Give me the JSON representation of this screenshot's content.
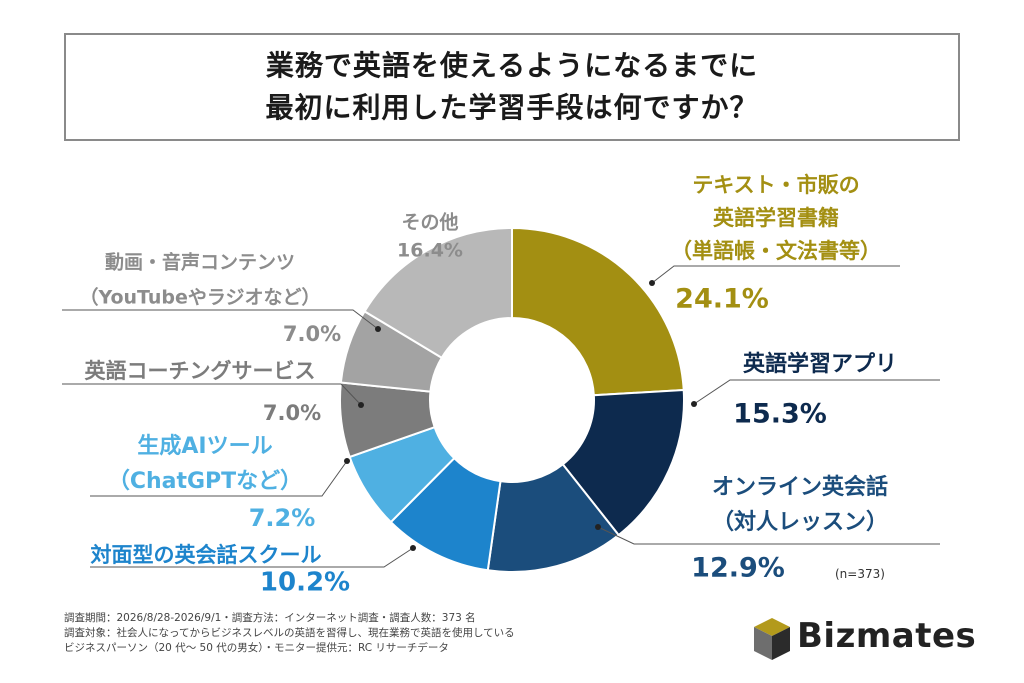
{
  "title": {
    "line1": "業務で英語を使えるようになるまでに",
    "line2": "最初に利用した学習手段は何ですか？"
  },
  "n_label": "(n=373)",
  "footnote": {
    "line1": "調査期間：2026/8/28-2026/9/1・調査方法：インターネット調査・調査人数：373 名",
    "line2": "調査対象：社会人になってからビジネスレベルの英語を習得し、現在業務で英語を使用している",
    "line3": "ビジネスパーソン（20 代〜 50 代の男女）・モニター提供元：RC リサーチデータ"
  },
  "logo": {
    "text": "Bizmates"
  },
  "chart_data": {
    "type": "pie",
    "donut": true,
    "slices": [
      {
        "label_lines": [
          "テキスト・市販の",
          "英語学習書籍",
          "（単語帳・文法書等）"
        ],
        "value": 24.1,
        "value_label": "24.1%",
        "color": "#a38f12"
      },
      {
        "label_lines": [
          "英語学習アプリ"
        ],
        "value": 15.3,
        "value_label": "15.3%",
        "color": "#0d2a4e"
      },
      {
        "label_lines": [
          "オンライン英会話",
          "（対人レッスン）"
        ],
        "value": 12.9,
        "value_label": "12.9%",
        "color": "#1b4d7c"
      },
      {
        "label_lines": [
          "対面型の英会話スクール"
        ],
        "value": 10.2,
        "value_label": "10.2%",
        "color": "#1d84cc"
      },
      {
        "label_lines": [
          "生成AIツール",
          "（ChatGPTなど）"
        ],
        "value": 7.2,
        "value_label": "7.2%",
        "color": "#4fb0e2"
      },
      {
        "label_lines": [
          "英語コーチングサービス"
        ],
        "value": 7.0,
        "value_label": "7.0%",
        "color": "#7c7c7c"
      },
      {
        "label_lines": [
          "動画・音声コンテンツ",
          "（YouTubeやラジオなど）"
        ],
        "value": 7.0,
        "value_label": "7.0%",
        "color": "#a3a3a3"
      },
      {
        "label_lines": [
          "その他"
        ],
        "value": 16.4,
        "value_label": "16.4%",
        "color": "#b8b8b8"
      }
    ],
    "label_colors": [
      "#a38f12",
      "#0d2a4e",
      "#1b4d7c",
      "#1d84cc",
      "#4fb0e2",
      "#7c7c7c",
      "#8c8c8c",
      "#8c8c8c"
    ]
  }
}
